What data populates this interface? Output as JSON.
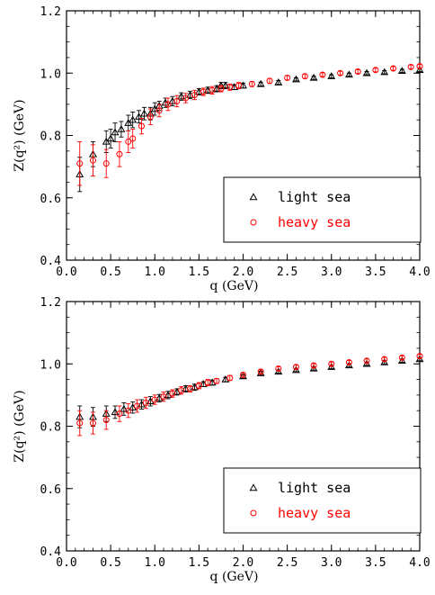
{
  "chart_data": [
    {
      "type": "scatter",
      "xlabel": "q (GeV)",
      "ylabel": "Z(q²) (GeV)",
      "xlim": [
        0.0,
        4.0
      ],
      "ylim": [
        0.4,
        1.2
      ],
      "xticks": [
        "0.0",
        "0.5",
        "1.0",
        "1.5",
        "2.0",
        "2.5",
        "3.0",
        "3.5",
        "4.0"
      ],
      "yticks": [
        "0.4",
        "0.6",
        "0.8",
        "1.0",
        "1.2"
      ],
      "legend_position": "bottom-right",
      "series": [
        {
          "name": "light sea",
          "color": "#000000",
          "marker": "triangle",
          "x": [
            0.15,
            0.3,
            0.45,
            0.5,
            0.55,
            0.62,
            0.7,
            0.75,
            0.82,
            0.88,
            0.95,
            1.0,
            1.05,
            1.12,
            1.2,
            1.3,
            1.4,
            1.5,
            1.6,
            1.7,
            1.75,
            1.8,
            1.9,
            2.0,
            2.2,
            2.4,
            2.6,
            2.8,
            3.0,
            3.2,
            3.4,
            3.6,
            3.8,
            4.0
          ],
          "y": [
            0.675,
            0.74,
            0.78,
            0.79,
            0.81,
            0.82,
            0.84,
            0.85,
            0.86,
            0.87,
            0.87,
            0.885,
            0.895,
            0.905,
            0.91,
            0.925,
            0.93,
            0.94,
            0.945,
            0.95,
            0.96,
            0.96,
            0.955,
            0.96,
            0.965,
            0.97,
            0.98,
            0.985,
            0.99,
            0.995,
            1.0,
            1.003,
            1.007,
            1.01
          ],
          "err": [
            0.055,
            0.04,
            0.035,
            0.03,
            0.03,
            0.025,
            0.025,
            0.025,
            0.02,
            0.02,
            0.02,
            0.02,
            0.015,
            0.015,
            0.015,
            0.012,
            0.012,
            0.01,
            0.01,
            0.01,
            0.01,
            0.01,
            0.008,
            0.008,
            0.006,
            0.006,
            0.005,
            0.005,
            0.005,
            0.005,
            0.005,
            0.005,
            0.005,
            0.005
          ]
        },
        {
          "name": "heavy sea",
          "color": "#ff0000",
          "marker": "circle",
          "x": [
            0.15,
            0.3,
            0.45,
            0.6,
            0.7,
            0.75,
            0.85,
            0.95,
            1.05,
            1.15,
            1.25,
            1.35,
            1.45,
            1.55,
            1.65,
            1.75,
            1.85,
            1.95,
            2.1,
            2.3,
            2.5,
            2.7,
            2.9,
            3.1,
            3.3,
            3.5,
            3.7,
            3.9,
            4.0
          ],
          "y": [
            0.71,
            0.72,
            0.71,
            0.74,
            0.78,
            0.79,
            0.83,
            0.86,
            0.88,
            0.9,
            0.91,
            0.92,
            0.93,
            0.94,
            0.945,
            0.95,
            0.955,
            0.96,
            0.965,
            0.975,
            0.985,
            0.99,
            0.995,
            1.0,
            1.005,
            1.01,
            1.015,
            1.02,
            1.022
          ],
          "err": [
            0.07,
            0.05,
            0.045,
            0.04,
            0.035,
            0.03,
            0.025,
            0.025,
            0.02,
            0.02,
            0.018,
            0.015,
            0.015,
            0.012,
            0.012,
            0.01,
            0.01,
            0.01,
            0.008,
            0.008,
            0.007,
            0.007,
            0.006,
            0.006,
            0.006,
            0.006,
            0.006,
            0.006,
            0.006
          ]
        }
      ]
    },
    {
      "type": "scatter",
      "xlabel": "q (GeV)",
      "ylabel": "Z(q²) (GeV)",
      "xlim": [
        0.0,
        4.0
      ],
      "ylim": [
        0.4,
        1.2
      ],
      "xticks": [
        "0.0",
        "0.5",
        "1.0",
        "1.5",
        "2.0",
        "2.5",
        "3.0",
        "3.5",
        "4.0"
      ],
      "yticks": [
        "0.4",
        "0.6",
        "0.8",
        "1.0",
        "1.2"
      ],
      "legend_position": "bottom-right",
      "series": [
        {
          "name": "light sea",
          "color": "#000000",
          "marker": "triangle",
          "x": [
            0.15,
            0.3,
            0.45,
            0.55,
            0.65,
            0.75,
            0.85,
            0.95,
            1.05,
            1.15,
            1.25,
            1.35,
            1.45,
            1.55,
            1.65,
            1.8,
            2.0,
            2.2,
            2.4,
            2.6,
            2.8,
            3.0,
            3.2,
            3.4,
            3.6,
            3.8,
            4.0
          ],
          "y": [
            0.83,
            0.83,
            0.84,
            0.845,
            0.855,
            0.86,
            0.87,
            0.88,
            0.89,
            0.9,
            0.91,
            0.92,
            0.925,
            0.935,
            0.94,
            0.95,
            0.96,
            0.97,
            0.975,
            0.98,
            0.985,
            0.99,
            0.995,
            1.0,
            1.005,
            1.01,
            1.015
          ],
          "err": [
            0.035,
            0.03,
            0.025,
            0.02,
            0.02,
            0.018,
            0.015,
            0.015,
            0.012,
            0.012,
            0.01,
            0.01,
            0.01,
            0.008,
            0.008,
            0.007,
            0.006,
            0.006,
            0.005,
            0.005,
            0.005,
            0.005,
            0.005,
            0.005,
            0.005,
            0.005,
            0.005
          ]
        },
        {
          "name": "heavy sea",
          "color": "#ff0000",
          "marker": "circle",
          "x": [
            0.15,
            0.3,
            0.45,
            0.6,
            0.7,
            0.8,
            0.9,
            1.0,
            1.1,
            1.2,
            1.3,
            1.4,
            1.5,
            1.6,
            1.7,
            1.85,
            2.0,
            2.2,
            2.4,
            2.6,
            2.8,
            3.0,
            3.2,
            3.4,
            3.6,
            3.8,
            4.0
          ],
          "y": [
            0.81,
            0.81,
            0.82,
            0.84,
            0.85,
            0.865,
            0.875,
            0.885,
            0.895,
            0.905,
            0.915,
            0.92,
            0.93,
            0.94,
            0.945,
            0.955,
            0.965,
            0.975,
            0.985,
            0.99,
            0.995,
            1.0,
            1.005,
            1.01,
            1.015,
            1.02,
            1.025
          ],
          "err": [
            0.04,
            0.035,
            0.03,
            0.025,
            0.022,
            0.02,
            0.018,
            0.015,
            0.015,
            0.012,
            0.012,
            0.01,
            0.01,
            0.01,
            0.008,
            0.008,
            0.007,
            0.006,
            0.006,
            0.006,
            0.006,
            0.006,
            0.006,
            0.006,
            0.006,
            0.006,
            0.006
          ]
        }
      ]
    }
  ]
}
